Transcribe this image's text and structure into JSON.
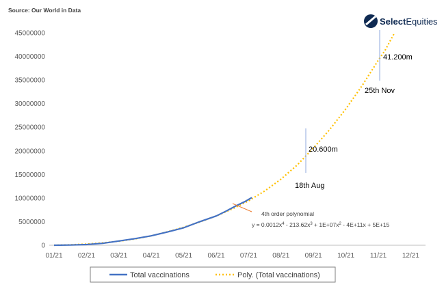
{
  "source": "Source: Our World in Data",
  "logo": {
    "brand_bold": "Select",
    "brand_regular": "Equities",
    "color": "#0f2a52"
  },
  "chart_data": {
    "type": "line",
    "x_ticks": [
      "01/21",
      "02/21",
      "03/21",
      "04/21",
      "05/21",
      "06/21",
      "07/21",
      "08/21",
      "09/21",
      "10/21",
      "11/21",
      "12/21"
    ],
    "y_ticks": [
      "0",
      "5000000",
      "10000000",
      "15000000",
      "20000000",
      "25000000",
      "30000000",
      "35000000",
      "40000000",
      "45000000"
    ],
    "ylim": [
      0,
      45000000
    ],
    "series": [
      {
        "name": "Total vaccinations",
        "color": "#4472c4",
        "style": "solid",
        "points": [
          [
            0,
            0
          ],
          [
            0.5,
            50000
          ],
          [
            1,
            150000
          ],
          [
            1.5,
            400000
          ],
          [
            2,
            900000
          ],
          [
            2.5,
            1400000
          ],
          [
            3,
            2000000
          ],
          [
            3.5,
            2800000
          ],
          [
            4,
            3700000
          ],
          [
            4.5,
            5000000
          ],
          [
            5,
            6200000
          ],
          [
            5.3,
            7200000
          ],
          [
            5.6,
            8300000
          ],
          [
            5.9,
            9300000
          ],
          [
            6.1,
            10100000
          ]
        ]
      },
      {
        "name": "Poly. (Total vaccinations)",
        "color": "#ffc000",
        "style": "dotted",
        "points": [
          [
            0,
            0
          ],
          [
            0.5,
            80000
          ],
          [
            1,
            250000
          ],
          [
            1.5,
            500000
          ],
          [
            2,
            850000
          ],
          [
            2.5,
            1350000
          ],
          [
            3,
            2000000
          ],
          [
            3.5,
            2850000
          ],
          [
            4,
            3800000
          ],
          [
            4.5,
            4950000
          ],
          [
            5,
            6200000
          ],
          [
            5.5,
            7700000
          ],
          [
            6,
            9400000
          ],
          [
            6.5,
            11500000
          ],
          [
            7,
            14000000
          ],
          [
            7.5,
            17000000
          ],
          [
            8,
            20600000
          ],
          [
            8.5,
            24500000
          ],
          [
            9,
            28900000
          ],
          [
            9.5,
            33800000
          ],
          [
            10,
            39200000
          ],
          [
            10.2,
            41200000
          ],
          [
            10.5,
            45000000
          ]
        ]
      }
    ],
    "annotations": [
      {
        "value_label": "20.600m",
        "date_label": "18th Aug"
      },
      {
        "value_label": "41.200m",
        "date_label": "25th Nov"
      },
      {
        "label": "4th order polynomial"
      }
    ],
    "legend_position": "bottom",
    "grid": false
  }
}
